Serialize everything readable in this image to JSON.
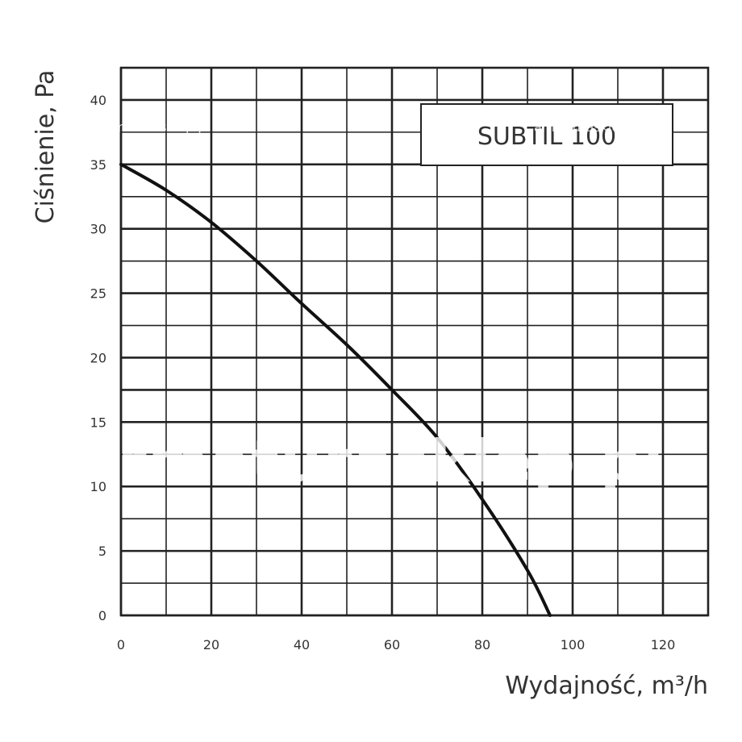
{
  "chart_data": {
    "type": "line",
    "title": "",
    "xlabel": "Wydajność, m³/h",
    "ylabel": "Ciśnienie, Pa",
    "xlim": [
      0,
      130
    ],
    "ylim": [
      0,
      42.5
    ],
    "x_ticks": [
      0,
      20,
      40,
      60,
      80,
      100,
      120
    ],
    "y_ticks": [
      0,
      5,
      10,
      15,
      20,
      25,
      30,
      35,
      40
    ],
    "x_minor_step": 10,
    "y_minor_step": 2.5,
    "grid": true,
    "legend": {
      "label": "SUBTIL 100",
      "placement": "top-right"
    },
    "series": [
      {
        "name": "SUBTIL 100",
        "x": [
          0,
          10,
          20,
          30,
          40,
          50,
          60,
          70,
          80,
          90,
          95
        ],
        "y": [
          35,
          33,
          30.5,
          27.5,
          24.2,
          21.0,
          17.5,
          13.8,
          9.0,
          3.5,
          0
        ]
      }
    ],
    "watermark": "armaturasklep.pl",
    "colors": {
      "line": "#111111",
      "grid": "#222222",
      "text": "#333333",
      "background": "#ffffff"
    }
  }
}
